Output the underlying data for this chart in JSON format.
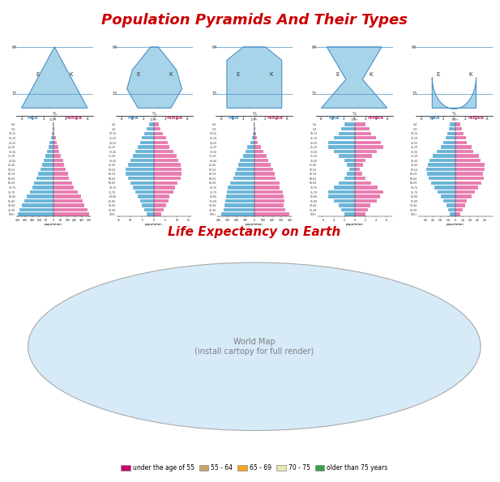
{
  "title_pyramids": "Population Pyramids And Their Types",
  "title_map": "Life Expectancy on Earth",
  "title_color": "#cc0000",
  "title_fontsize": 13,
  "subtitle_fontsize": 11,
  "background_color": "#ffffff",
  "map_bg_color": "#d6eaf8",
  "legend_items": [
    {
      "label": "under the age of 55",
      "color": "#cc0066"
    },
    {
      "label": "55 - 64",
      "color": "#c8a46e"
    },
    {
      "label": "65 - 69",
      "color": "#f5a623"
    },
    {
      "label": "70 - 75",
      "color": "#e8e8b0"
    },
    {
      "label": "older than 75 years",
      "color": "#3a9e4a"
    }
  ],
  "pyramid_colors": {
    "male": "#6ab4d8",
    "female": "#e87cb0"
  },
  "age_groups": [
    "100+",
    "95-99",
    "90-94",
    "85-89",
    "80-84",
    "75-79",
    "70-74",
    "65-69",
    "60-64",
    "55-59",
    "50-54",
    "45-49",
    "40-44",
    "35-39",
    "30-34",
    "25-29",
    "20-24",
    "15-19",
    "10-14",
    "5-9",
    "0-4"
  ],
  "pyramid_types": [
    "expansive",
    "constrictive",
    "stationary",
    "hourglass",
    "beehive"
  ]
}
